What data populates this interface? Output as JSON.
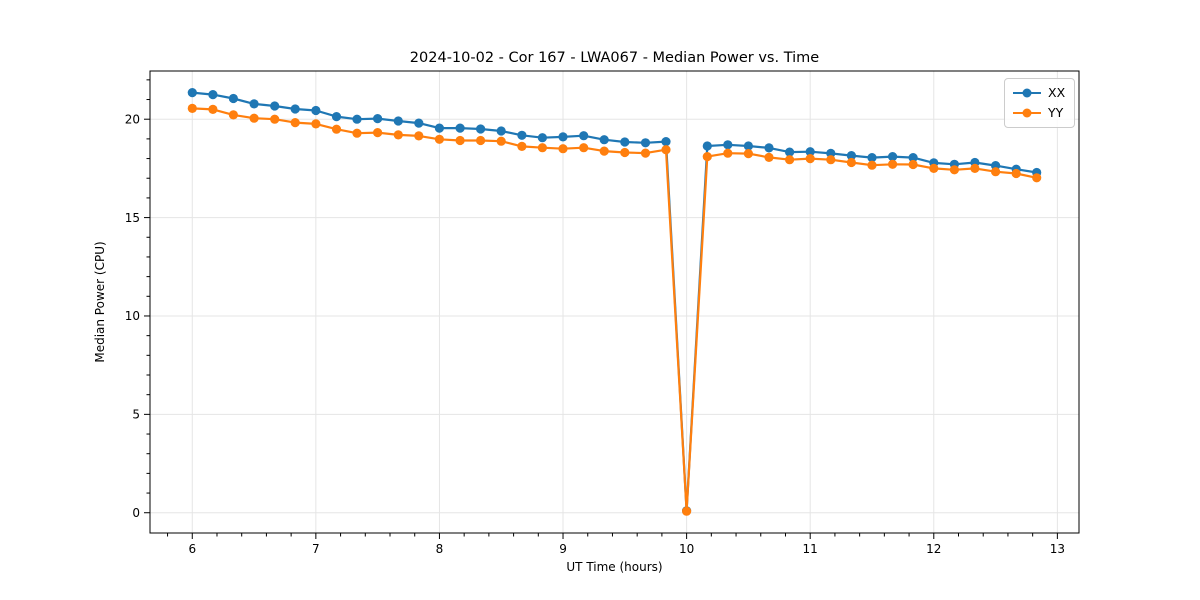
{
  "chart_data": {
    "type": "line",
    "title": "2024-10-02 - Cor 167 - LWA067 - Median Power vs. Time",
    "xlabel": "UT Time (hours)",
    "ylabel": "Median Power (CPU)",
    "xlim": [
      5.658,
      13.175
    ],
    "ylim": [
      -1.03,
      22.45
    ],
    "xticks": [
      6,
      7,
      8,
      9,
      10,
      11,
      12,
      13
    ],
    "yticks": [
      0,
      5,
      10,
      15,
      20
    ],
    "minor_x_step": 0.2,
    "minor_y_step": 1,
    "grid": "major",
    "grid_color": "#e5e5e5",
    "spine_color": "#000000",
    "legend_position": "upper right",
    "x": [
      6.0,
      6.167,
      6.333,
      6.5,
      6.667,
      6.833,
      7.0,
      7.167,
      7.333,
      7.5,
      7.667,
      7.833,
      8.0,
      8.167,
      8.333,
      8.5,
      8.667,
      8.833,
      9.0,
      9.167,
      9.333,
      9.5,
      9.667,
      9.833,
      10.0,
      10.167,
      10.333,
      10.5,
      10.667,
      10.833,
      11.0,
      11.167,
      11.333,
      11.5,
      11.667,
      11.833,
      12.0,
      12.167,
      12.333,
      12.5,
      12.667,
      12.833
    ],
    "series": [
      {
        "name": "XX",
        "color": "#1f77b4",
        "values": [
          21.35,
          21.25,
          21.05,
          20.78,
          20.67,
          20.52,
          20.44,
          20.13,
          20.0,
          20.03,
          19.91,
          19.8,
          19.55,
          19.55,
          19.5,
          19.4,
          19.18,
          19.06,
          19.1,
          19.16,
          18.96,
          18.84,
          18.8,
          18.86,
          0.1,
          18.64,
          18.7,
          18.64,
          18.54,
          18.33,
          18.35,
          18.26,
          18.15,
          18.05,
          18.1,
          18.05,
          17.78,
          17.71,
          17.8,
          17.64,
          17.46,
          17.29
        ]
      },
      {
        "name": "YY",
        "color": "#ff7f0e",
        "values": [
          20.55,
          20.5,
          20.22,
          20.05,
          20.0,
          19.83,
          19.76,
          19.49,
          19.29,
          19.32,
          19.2,
          19.15,
          18.98,
          18.92,
          18.92,
          18.88,
          18.62,
          18.55,
          18.5,
          18.55,
          18.38,
          18.31,
          18.28,
          18.45,
          0.08,
          18.1,
          18.27,
          18.25,
          18.06,
          17.94,
          18.0,
          17.94,
          17.8,
          17.66,
          17.71,
          17.7,
          17.5,
          17.43,
          17.5,
          17.33,
          17.24,
          17.02
        ]
      }
    ]
  }
}
